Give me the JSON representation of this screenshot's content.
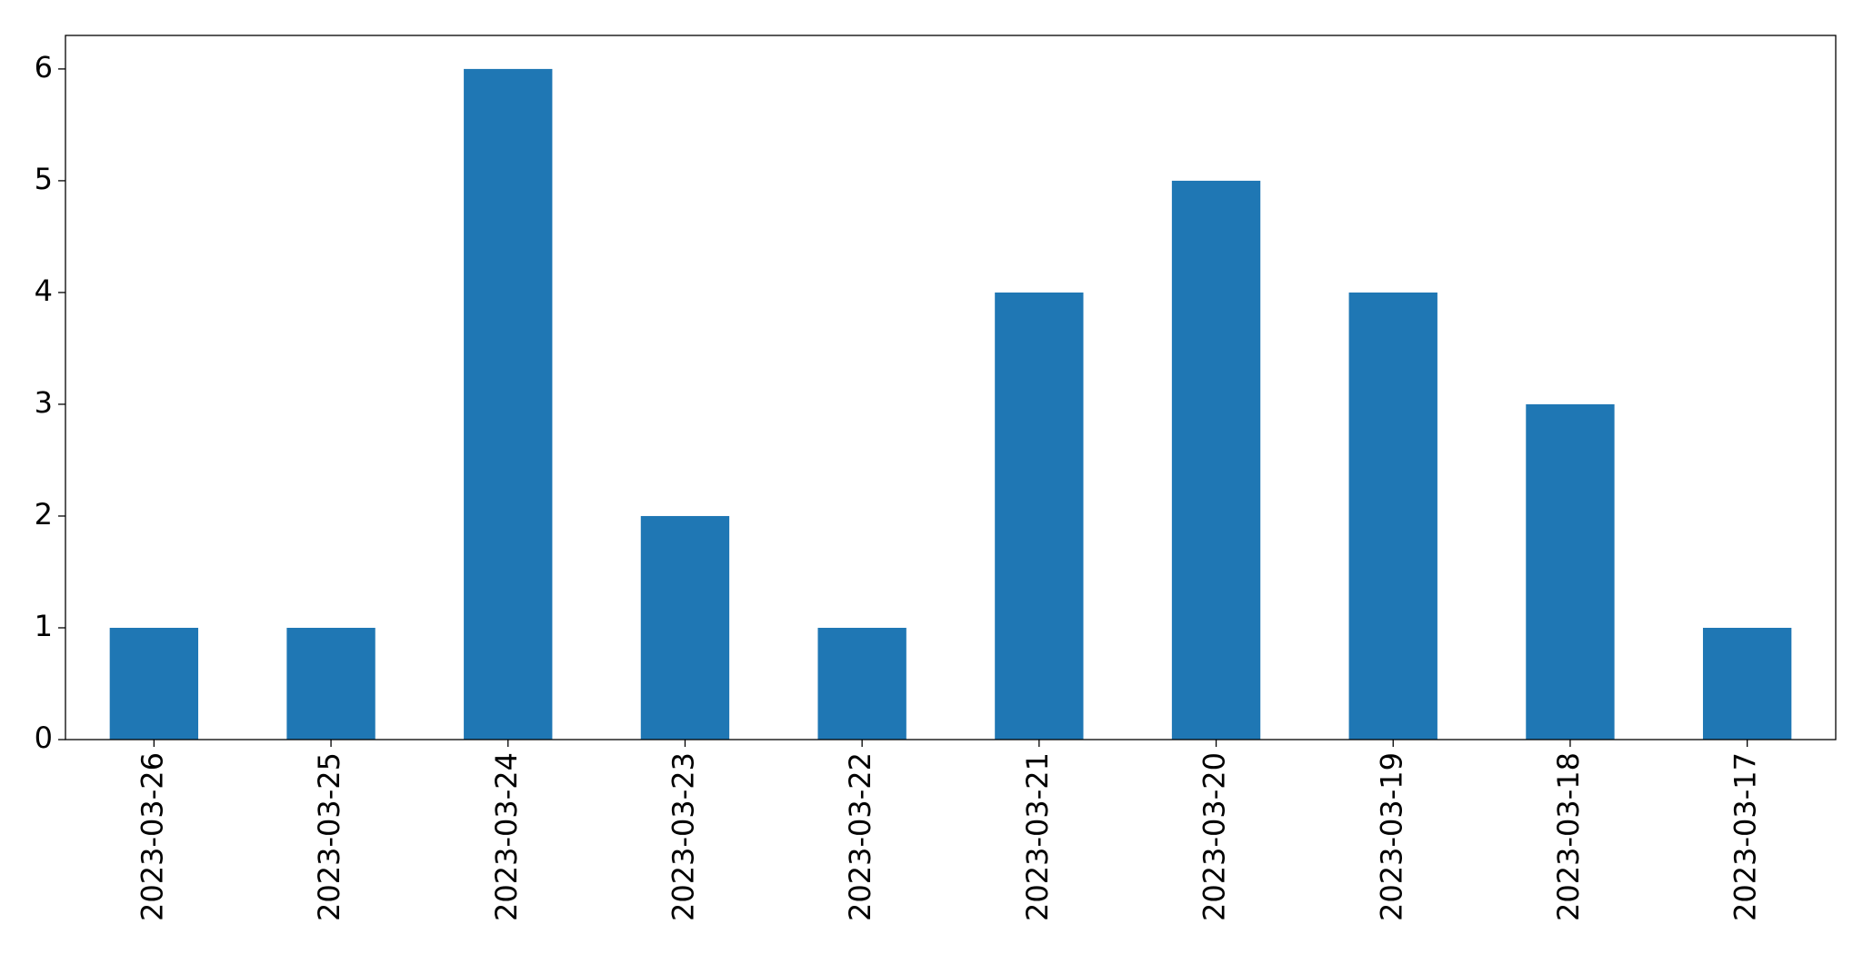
{
  "chart_data": {
    "type": "bar",
    "categories": [
      "2023-03-26",
      "2023-03-25",
      "2023-03-24",
      "2023-03-23",
      "2023-03-22",
      "2023-03-21",
      "2023-03-20",
      "2023-03-19",
      "2023-03-18",
      "2023-03-17"
    ],
    "values": [
      1,
      1,
      6,
      2,
      1,
      4,
      5,
      4,
      3,
      1
    ],
    "color": "#1f77b4",
    "ylim": [
      0,
      6.3
    ],
    "yticks": [
      0,
      1,
      2,
      3,
      4,
      5,
      6
    ],
    "grid": false
  }
}
